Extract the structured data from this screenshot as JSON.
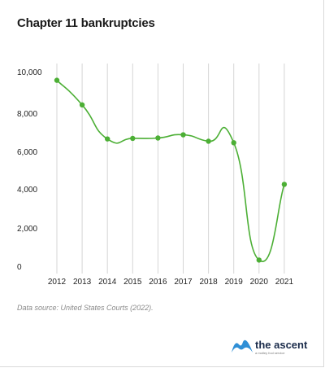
{
  "chart_data": {
    "type": "line",
    "title": "Chapter 11 bankruptcies",
    "x": [
      "2012",
      "2013",
      "2014",
      "2015",
      "2016",
      "2017",
      "2018",
      "2019",
      "2020",
      "2021"
    ],
    "series": [
      {
        "values": [
          10300,
          9000,
          7200,
          7230,
          7250,
          7420,
          7080,
          7000,
          800,
          4800
        ]
      }
    ],
    "y_ticks": [
      "10,000",
      "8,000",
      "6,000",
      "4,000",
      "2,000",
      "0"
    ],
    "y_tick_values": [
      10000,
      8000,
      6000,
      4000,
      2000,
      0
    ],
    "ylim": [
      0,
      10000
    ],
    "grid": "vertical",
    "line_style": "smooth",
    "color": "#4caf35",
    "xlabel": "",
    "ylabel": ""
  },
  "source_text": "Data source: United States Courts (2022).",
  "brand": {
    "name": "the ascent",
    "tagline": "a motley fool service",
    "logo_icon": "ascent-logo-icon",
    "logo_color": "#2f8fd6"
  }
}
